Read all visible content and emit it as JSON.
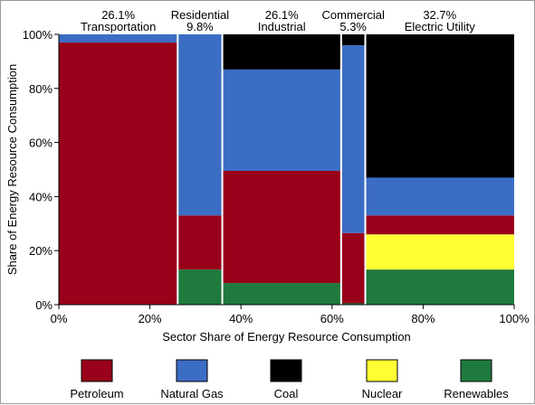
{
  "chart_data": {
    "type": "mosaic",
    "xlabel": "Sector Share of Energy Resource Consumption",
    "ylabel": "Share of Energy Resource Consumption",
    "x_ticks": [
      "0%",
      "20%",
      "40%",
      "60%",
      "80%",
      "100%"
    ],
    "y_ticks": [
      "0%",
      "20%",
      "40%",
      "60%",
      "80%",
      "100%"
    ],
    "xlim": [
      0,
      100
    ],
    "ylim": [
      0,
      100
    ],
    "resources": [
      {
        "name": "Petroleum",
        "color": "#99001a"
      },
      {
        "name": "Natural Gas",
        "color": "#3b6dc4"
      },
      {
        "name": "Coal",
        "color": "#000000"
      },
      {
        "name": "Nuclear",
        "color": "#ffff33"
      },
      {
        "name": "Renewables",
        "color": "#1f7a3d"
      }
    ],
    "sectors": [
      {
        "name": "Transportation",
        "share_label": "26.1%",
        "share": 26.1,
        "values": {
          "Petroleum": 97,
          "Natural Gas": 3,
          "Coal": 0,
          "Nuclear": 0,
          "Renewables": 0
        }
      },
      {
        "name": "Residential",
        "share_label": "9.8%",
        "share": 9.8,
        "values": {
          "Petroleum": 20,
          "Natural Gas": 67,
          "Coal": 0,
          "Nuclear": 0,
          "Renewables": 13
        }
      },
      {
        "name": "Industrial",
        "share_label": "26.1%",
        "share": 26.1,
        "values": {
          "Petroleum": 41.5,
          "Natural Gas": 37.5,
          "Coal": 13,
          "Nuclear": 0,
          "Renewables": 8
        }
      },
      {
        "name": "Commercial",
        "share_label": "5.3%",
        "share": 5.3,
        "values": {
          "Petroleum": 26,
          "Natural Gas": 69.5,
          "Coal": 4,
          "Nuclear": 0,
          "Renewables": 0.5
        }
      },
      {
        "name": "Electric Utility",
        "share_label": "32.7%",
        "share": 32.7,
        "values": {
          "Petroleum": 7,
          "Natural Gas": 14,
          "Coal": 53,
          "Nuclear": 13,
          "Renewables": 13
        }
      }
    ],
    "legend_placement": "bottom"
  }
}
